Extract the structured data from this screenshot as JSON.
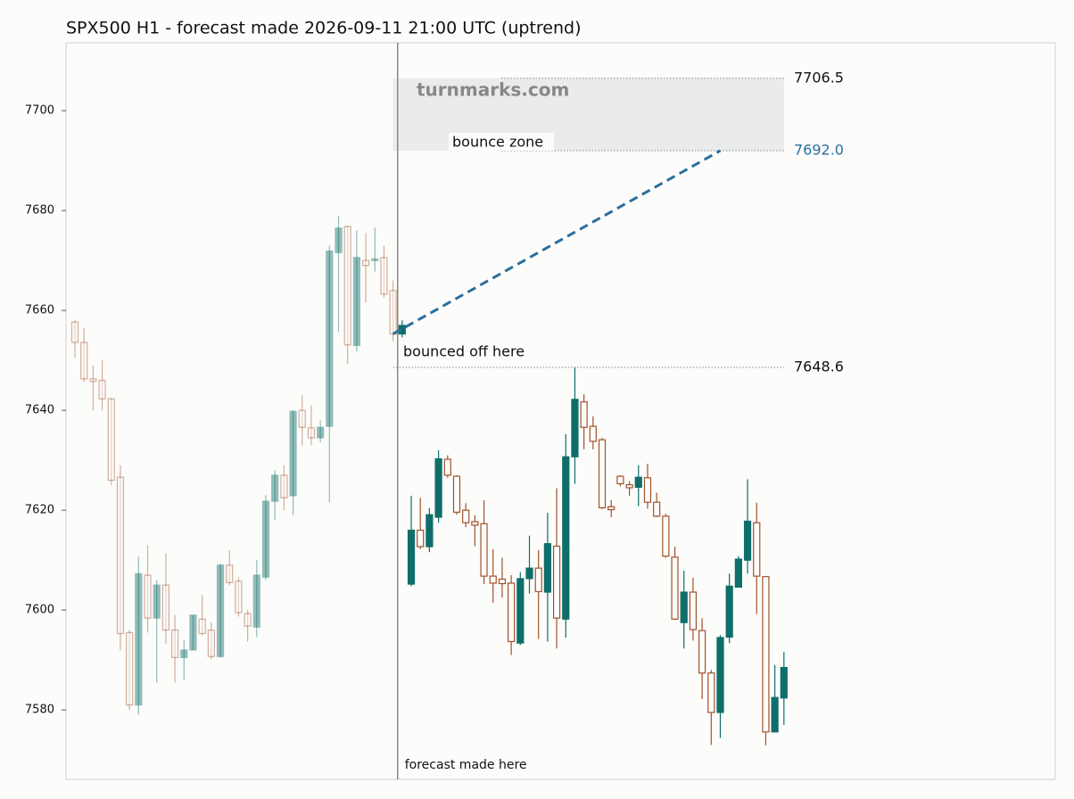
{
  "chart_data": {
    "type": "candlestick",
    "title": "SPX500 H1 - forecast made 2026-09-11 21:00 UTC (uptrend)",
    "watermark": "turnmarks.com",
    "ylim": [
      7566.1,
      7713.6
    ],
    "yticks": [
      7580,
      7600,
      7620,
      7640,
      7660,
      7680,
      7700
    ],
    "history": {
      "opacity": 0.45,
      "up_color": "#0f6e6a",
      "down_color": "#a0522d",
      "open": [
        7657.7,
        7653.6,
        7646.3,
        7646,
        7642.3,
        7626.6,
        7595.5,
        7581,
        7607,
        7598.4,
        7605,
        7596,
        7590.5,
        7592,
        7598.2,
        7596,
        7590.7,
        7609,
        7605.8,
        7599.3,
        7596.6,
        7606.6,
        7621.8,
        7627,
        7622.9,
        7640,
        7636.5,
        7634.5,
        7636.8,
        7671.6,
        7676.8,
        7653,
        7670,
        7670,
        7670.6,
        7664
      ],
      "high": [
        7658,
        7656.5,
        7649,
        7650,
        7642.5,
        7629,
        7596,
        7610.7,
        7613,
        7606,
        7611.4,
        7599,
        7594,
        7599,
        7603,
        7597.5,
        7609.3,
        7612,
        7606.5,
        7600,
        7610,
        7623,
        7628,
        7629,
        7640,
        7643,
        7641,
        7638,
        7673,
        7679,
        7677,
        7676,
        7675.5,
        7676.6,
        7673,
        7666
      ],
      "low": [
        7650.5,
        7645.7,
        7640,
        7640,
        7625,
        7592,
        7580,
        7579,
        7595.5,
        7585.5,
        7593.3,
        7585.5,
        7586,
        7592,
        7595,
        7590.2,
        7590.5,
        7605,
        7598.7,
        7593.7,
        7594.6,
        7606,
        7618,
        7620,
        7619,
        7633,
        7633,
        7633.6,
        7621.6,
        7655.7,
        7649.3,
        7651.8,
        7661.6,
        7667.8,
        7662.6,
        7653.8
      ],
      "close": [
        7653.6,
        7646.3,
        7645.8,
        7642.3,
        7626,
        7595.3,
        7581,
        7607.3,
        7598.4,
        7605,
        7596,
        7590.5,
        7592,
        7599,
        7595.3,
        7590.7,
        7609,
        7605.5,
        7599.5,
        7596.8,
        7607,
        7621.8,
        7627,
        7622.5,
        7639.8,
        7636.6,
        7634.5,
        7636.6,
        7671.9,
        7676.5,
        7653.1,
        7670.6,
        7669,
        7670.3,
        7663.3,
        7655.3
      ]
    },
    "actual": {
      "opacity": 1,
      "up_color": "#0f6e6a",
      "down_color": "#a0522d",
      "open": [
        7655.3,
        7605.2,
        7616,
        7612.7,
        7618.6,
        7630.2,
        7626.8,
        7620,
        7617.7,
        7617.3,
        7606.8,
        7606.2,
        7605.4,
        7593.4,
        7606.3,
        7608.4,
        7603.6,
        7612.8,
        7598.2,
        7630.7,
        7641.7,
        7636.8,
        7634.1,
        7620.7,
        7626.8,
        7625.1,
        7624.6,
        7626.5,
        7621.6,
        7618.8,
        7610.6,
        7597.5,
        7603.6,
        7595.9,
        7587.4,
        7579.5,
        7594.6,
        7604.6,
        7610,
        7617.5,
        7606.7,
        7575.6,
        7582.4
      ],
      "high": [
        7658,
        7622.9,
        7622.5,
        7620.4,
        7632,
        7631,
        7627,
        7621.4,
        7619,
        7622,
        7612.2,
        7610.5,
        7607,
        7607.6,
        7614.9,
        7612,
        7619.5,
        7624.4,
        7635.2,
        7648.5,
        7643.2,
        7638.8,
        7634.5,
        7622,
        7627,
        7625.8,
        7629,
        7629.3,
        7623.5,
        7619.3,
        7612.7,
        7607.9,
        7606.5,
        7598.4,
        7588,
        7595,
        7607.3,
        7610.8,
        7626.2,
        7621.5,
        7606.8,
        7589,
        7591.6
      ],
      "low": [
        7654.6,
        7604.8,
        7612.2,
        7611.6,
        7617.5,
        7626.5,
        7619.1,
        7616.6,
        7612.8,
        7605.2,
        7601.5,
        7602.5,
        7591,
        7593,
        7603.3,
        7594.2,
        7593.7,
        7592.3,
        7594.5,
        7625.3,
        7632.2,
        7632.2,
        7620.2,
        7618.6,
        7624.8,
        7622.9,
        7620.8,
        7620.3,
        7618.6,
        7610.5,
        7598,
        7592.3,
        7593.9,
        7582.2,
        7573,
        7574.4,
        7593.4,
        7604.5,
        7607.3,
        7599.2,
        7572.9,
        7575.6,
        7577
      ],
      "close": [
        7657,
        7616,
        7612.7,
        7619.1,
        7630.3,
        7627,
        7619.6,
        7617.5,
        7617,
        7606.8,
        7605.4,
        7605.3,
        7593.7,
        7606.3,
        7608.4,
        7603.7,
        7613.3,
        7598.4,
        7630.7,
        7642.2,
        7636.6,
        7633.8,
        7620.5,
        7620.1,
        7625.3,
        7624.5,
        7626.6,
        7621.6,
        7618.8,
        7610.8,
        7598.2,
        7603.6,
        7596.1,
        7587.4,
        7579.5,
        7594.5,
        7604.8,
        7610.2,
        7617.8,
        7606.8,
        7575.6,
        7582.5,
        7588.5
      ]
    },
    "zone": {
      "top": 7706.5,
      "bottom": {
        "value": 7692,
        "label": "7692.0"
      },
      "text": "bounce zone",
      "color": "#e9ecea"
    },
    "support": {
      "value": 7648.6,
      "text": "bounced off here"
    },
    "forecast": {
      "x": [
        35,
        71
      ],
      "values": [
        7655.3,
        7692
      ],
      "color": "#2a6f9e",
      "text": "forecast made here"
    }
  }
}
